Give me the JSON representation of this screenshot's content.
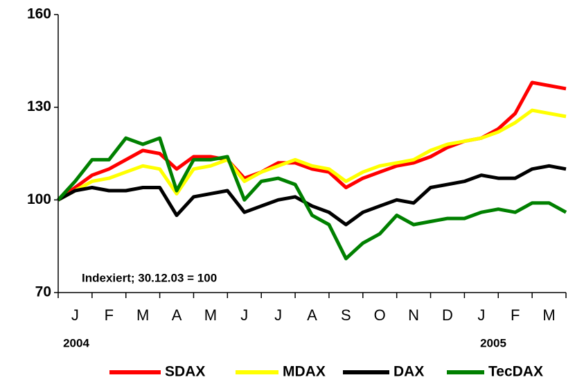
{
  "chart_data": {
    "type": "line",
    "categories": [
      "J",
      "F",
      "M",
      "A",
      "M",
      "J",
      "J",
      "A",
      "S",
      "O",
      "N",
      "D",
      "J",
      "F",
      "M"
    ],
    "x": [
      0,
      0.5,
      1,
      1.5,
      2,
      2.5,
      3,
      3.5,
      4,
      4.5,
      5,
      5.5,
      6,
      6.5,
      7,
      7.5,
      8,
      8.5,
      9,
      9.5,
      10,
      10.5,
      11,
      11.5,
      12,
      12.5,
      13,
      13.5,
      14,
      14.5,
      15
    ],
    "xlim": [
      0,
      15
    ],
    "xticks": [
      0,
      1,
      2,
      3,
      4,
      5,
      6,
      7,
      8,
      9,
      10,
      11,
      12,
      13,
      14,
      15
    ],
    "ylim": [
      70,
      160
    ],
    "yticks": [
      70,
      100,
      130,
      160
    ],
    "grid": false,
    "legend": "bottom",
    "annotations": [
      "Indexiert; 30.12.03 = 100",
      "2004",
      "2005"
    ],
    "series": [
      {
        "name": "SDAX",
        "color": "#ff0000",
        "values": [
          100,
          104,
          108,
          110,
          113,
          116,
          115,
          110,
          114,
          114,
          113,
          107,
          109,
          112,
          112,
          110,
          109,
          104,
          107,
          109,
          111,
          112,
          114,
          117,
          119,
          120,
          123,
          128,
          138,
          137,
          136
        ]
      },
      {
        "name": "MDAX",
        "color": "#ffff00",
        "values": [
          100,
          103,
          106,
          107,
          109,
          111,
          110,
          102,
          110,
          111,
          113,
          106,
          109,
          111,
          113,
          111,
          110,
          106,
          109,
          111,
          112,
          113,
          116,
          118,
          119,
          120,
          122,
          125,
          129,
          128,
          127
        ]
      },
      {
        "name": "DAX",
        "color": "#000000",
        "values": [
          100,
          103,
          104,
          103,
          103,
          104,
          104,
          95,
          101,
          102,
          103,
          96,
          98,
          100,
          101,
          98,
          96,
          92,
          96,
          98,
          100,
          99,
          104,
          105,
          106,
          108,
          107,
          107,
          110,
          111,
          110
        ]
      },
      {
        "name": "TecDAX",
        "color": "#008000",
        "values": [
          100,
          106,
          113,
          113,
          120,
          118,
          120,
          103,
          113,
          113,
          114,
          100,
          106,
          107,
          105,
          95,
          92,
          81,
          86,
          89,
          95,
          92,
          93,
          94,
          94,
          96,
          97,
          96,
          99,
          99,
          96
        ]
      }
    ]
  }
}
